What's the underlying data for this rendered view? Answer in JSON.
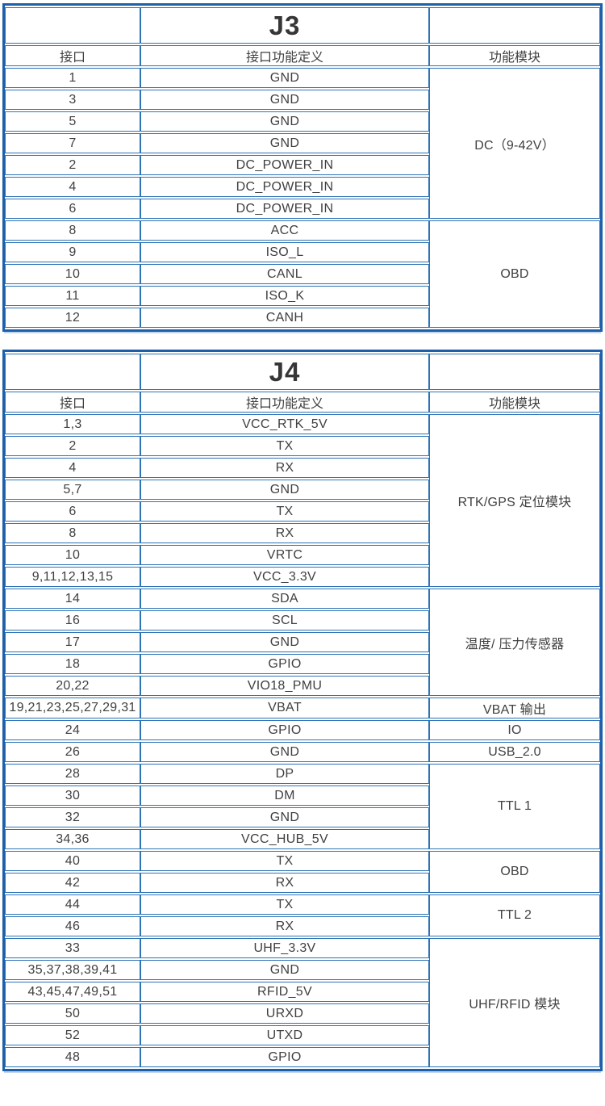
{
  "colors": {
    "outer_border": "#1d5fa9",
    "inner_border": "#2e74b5",
    "text": "#404040",
    "background": "#ffffff"
  },
  "tables": [
    {
      "title": "J3",
      "columns": [
        "接口",
        "接口功能定义",
        "功能模块"
      ],
      "rows": [
        [
          "1",
          "GND"
        ],
        [
          "3",
          "GND"
        ],
        [
          "5",
          "GND"
        ],
        [
          "7",
          "GND"
        ],
        [
          "2",
          "DC_POWER_IN"
        ],
        [
          "4",
          "DC_POWER_IN"
        ],
        [
          "6",
          "DC_POWER_IN"
        ],
        [
          "8",
          "ACC"
        ],
        [
          "9",
          "ISO_L"
        ],
        [
          "10",
          "CANL"
        ],
        [
          "11",
          "ISO_K"
        ],
        [
          "12",
          "CANH"
        ]
      ],
      "modules": [
        {
          "label": "DC（9-42V）",
          "rowspan": 7
        },
        {
          "label": "OBD",
          "rowspan": 5
        }
      ]
    },
    {
      "title": "J4",
      "columns": [
        "接口",
        "接口功能定义",
        "功能模块"
      ],
      "rows": [
        [
          "1,3",
          "VCC_RTK_5V"
        ],
        [
          "2",
          "TX"
        ],
        [
          "4",
          "RX"
        ],
        [
          "5,7",
          "GND"
        ],
        [
          "6",
          "TX"
        ],
        [
          "8",
          "RX"
        ],
        [
          "10",
          "VRTC"
        ],
        [
          "9,11,12,13,15",
          "VCC_3.3V"
        ],
        [
          "14",
          "SDA"
        ],
        [
          "16",
          "SCL"
        ],
        [
          "17",
          "GND"
        ],
        [
          "18",
          "GPIO"
        ],
        [
          "20,22",
          "VIO18_PMU"
        ],
        [
          "19,21,23,25,27,29,31",
          "VBAT"
        ],
        [
          "24",
          "GPIO"
        ],
        [
          "26",
          "GND"
        ],
        [
          "28",
          "DP"
        ],
        [
          "30",
          "DM"
        ],
        [
          "32",
          "GND"
        ],
        [
          "34,36",
          "VCC_HUB_5V"
        ],
        [
          "40",
          "TX"
        ],
        [
          "42",
          "RX"
        ],
        [
          "44",
          "TX"
        ],
        [
          "46",
          "RX"
        ],
        [
          "33",
          "UHF_3.3V"
        ],
        [
          "35,37,38,39,41",
          "GND"
        ],
        [
          "43,45,47,49,51",
          "RFID_5V"
        ],
        [
          "50",
          "URXD"
        ],
        [
          "52",
          "UTXD"
        ],
        [
          "48",
          "GPIO"
        ]
      ],
      "modules": [
        {
          "label": "RTK/GPS 定位模块",
          "rowspan": 8
        },
        {
          "label": "温度/ 压力传感器",
          "rowspan": 5
        },
        {
          "label": "VBAT 输出",
          "rowspan": 1
        },
        {
          "label": "IO",
          "rowspan": 1
        },
        {
          "label": "USB_2.0",
          "rowspan": 1
        },
        {
          "label": "TTL 1",
          "rowspan": 4
        },
        {
          "label": "OBD",
          "rowspan": 2
        },
        {
          "label": "TTL 2",
          "rowspan": 2
        },
        {
          "label": "UHF/RFID 模块",
          "rowspan": 6
        }
      ]
    }
  ]
}
